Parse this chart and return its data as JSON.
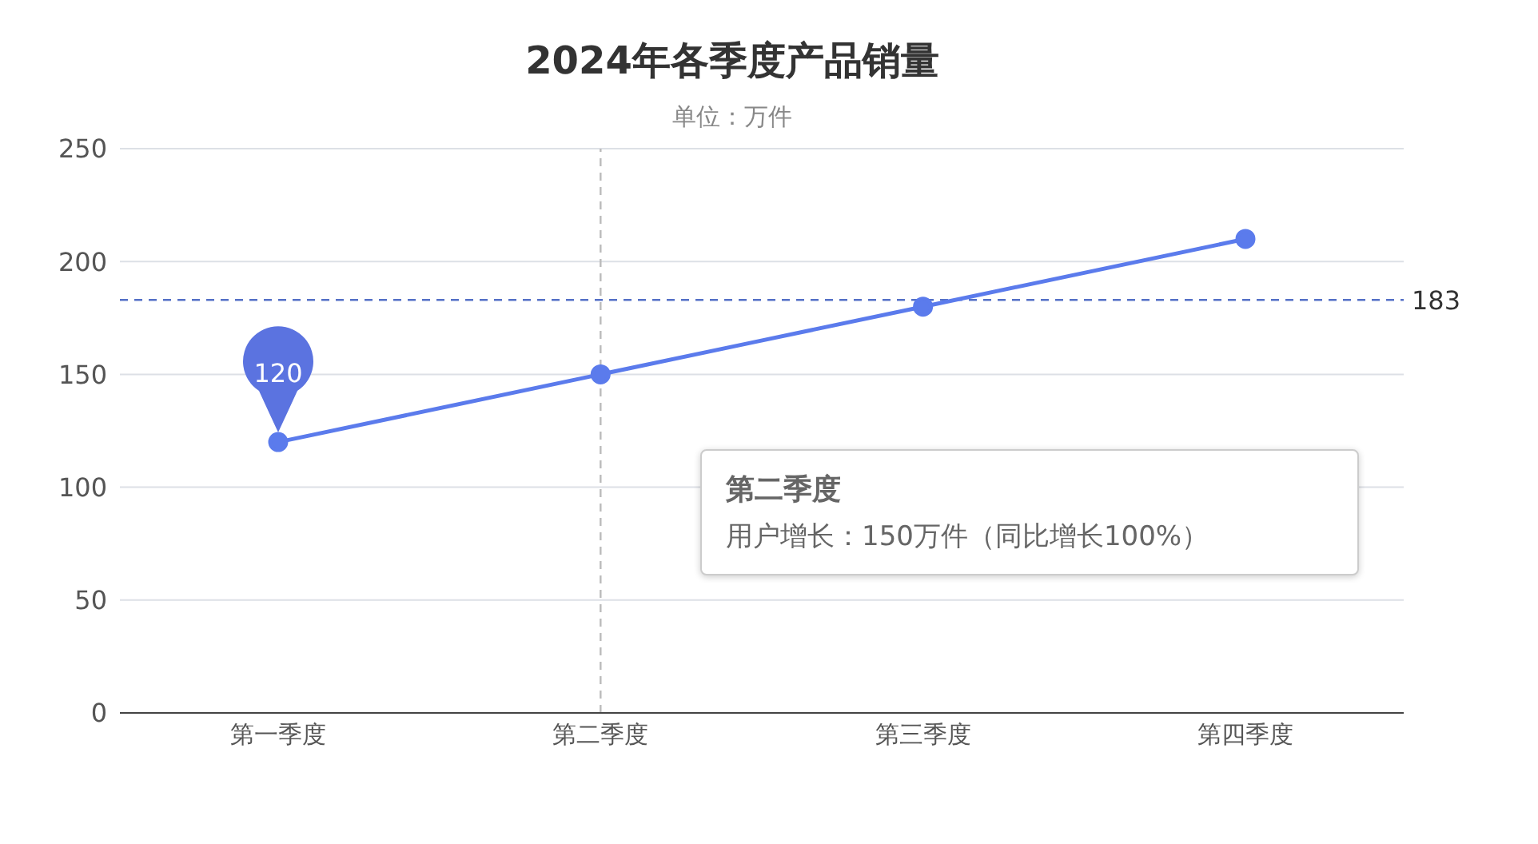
{
  "chart_data": {
    "type": "line",
    "title": "2024年各季度产品销量",
    "subtitle": "单位：万件",
    "categories": [
      "第一季度",
      "第二季度",
      "第三季度",
      "第四季度"
    ],
    "series": [
      {
        "color": "#5b7bec",
        "values": [
          120,
          150,
          180,
          210
        ],
        "value_labels": [
          "120",
          null,
          null,
          null
        ]
      }
    ],
    "ylim": [
      0,
      250
    ],
    "yticks": [
      0,
      50,
      100,
      150,
      200,
      250
    ],
    "grid": "y",
    "marker": "circle",
    "line_style": "solid",
    "legend": false,
    "ref_lines": [
      {
        "axis": "y",
        "value": 183,
        "label": "183",
        "color": "#5470c6",
        "line_style": "dashed"
      },
      {
        "axis": "x",
        "value": "第二季度",
        "label": null,
        "color": "#bbbbbb",
        "line_style": "dashed"
      }
    ],
    "annotations": [
      "第二季度",
      "用户增长：150万件（同比增长100%）"
    ]
  }
}
